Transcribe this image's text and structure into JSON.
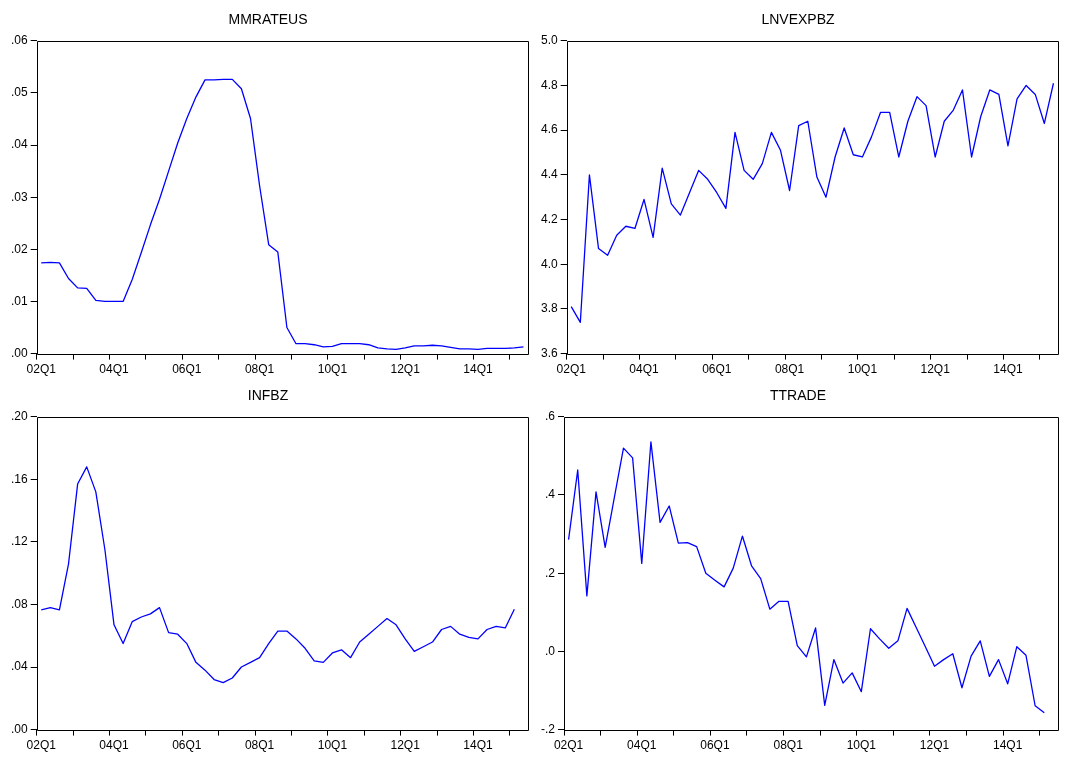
{
  "chart_data": [
    {
      "type": "line",
      "title": "MMRATEUS",
      "grid": false,
      "legend": false,
      "categories": [
        "02Q1",
        null,
        null,
        null,
        null,
        null,
        null,
        null,
        "04Q1",
        null,
        null,
        null,
        null,
        null,
        null,
        null,
        "06Q1",
        null,
        null,
        null,
        null,
        null,
        null,
        null,
        "08Q1",
        null,
        null,
        null,
        null,
        null,
        null,
        null,
        "10Q1",
        null,
        null,
        null,
        null,
        null,
        null,
        null,
        "12Q1",
        null,
        null,
        null,
        null,
        null,
        null,
        null,
        "14Q1",
        null,
        null,
        null,
        null,
        null
      ],
      "ylim": [
        0,
        0.06
      ],
      "yticks": [
        {
          "value": 0,
          "label": ".00"
        },
        {
          "value": 0.01,
          "label": ".01"
        },
        {
          "value": 0.02,
          "label": ".02"
        },
        {
          "value": 0.03,
          "label": ".03"
        },
        {
          "value": 0.04,
          "label": ".04"
        },
        {
          "value": 0.05,
          "label": ".05"
        },
        {
          "value": 0.06,
          "label": ".06"
        }
      ],
      "series": [
        {
          "color": "#0000ff",
          "values": [
            0.0174,
            0.0175,
            0.0174,
            0.0144,
            0.0126,
            0.0125,
            0.0102,
            0.01,
            0.01,
            0.01,
            0.0142,
            0.0194,
            0.0247,
            0.0296,
            0.035,
            0.0404,
            0.0451,
            0.0492,
            0.0525,
            0.0525,
            0.0526,
            0.0526,
            0.0508,
            0.0451,
            0.0322,
            0.0209,
            0.0195,
            0.005,
            0.0019,
            0.0019,
            0.0017,
            0.0013,
            0.0014,
            0.0019,
            0.0019,
            0.0019,
            0.0017,
            0.0011,
            0.0009,
            0.0008,
            0.0011,
            0.0015,
            0.0015,
            0.0016,
            0.0015,
            0.0012,
            0.0009,
            0.0009,
            0.0008,
            0.001,
            0.001,
            0.001,
            0.0011,
            0.0013
          ]
        }
      ]
    },
    {
      "type": "line",
      "title": "LNVEXPBZ",
      "grid": false,
      "legend": false,
      "categories": [
        "02Q1",
        null,
        null,
        null,
        null,
        null,
        null,
        null,
        "04Q1",
        null,
        null,
        null,
        null,
        null,
        null,
        null,
        "06Q1",
        null,
        null,
        null,
        null,
        null,
        null,
        null,
        "08Q1",
        null,
        null,
        null,
        null,
        null,
        null,
        null,
        "10Q1",
        null,
        null,
        null,
        null,
        null,
        null,
        null,
        "12Q1",
        null,
        null,
        null,
        null,
        null,
        null,
        null,
        "14Q1",
        null,
        null,
        null,
        null,
        null
      ],
      "ylim": [
        3.6,
        5.0
      ],
      "yticks": [
        {
          "value": 3.6,
          "label": "3.6"
        },
        {
          "value": 3.8,
          "label": "3.8"
        },
        {
          "value": 4,
          "label": "4.0"
        },
        {
          "value": 4.2,
          "label": "4.2"
        },
        {
          "value": 4.4,
          "label": "4.4"
        },
        {
          "value": 4.6,
          "label": "4.6"
        },
        {
          "value": 4.8,
          "label": "4.8"
        },
        {
          "value": 5,
          "label": "5.0"
        }
      ],
      "series": [
        {
          "color": "#0000ff",
          "values": [
            3.81,
            3.74,
            4.4,
            4.07,
            4.04,
            4.13,
            4.17,
            4.16,
            4.29,
            4.12,
            4.43,
            4.27,
            4.22,
            4.32,
            4.42,
            4.38,
            4.32,
            4.25,
            4.59,
            4.42,
            4.38,
            4.45,
            4.59,
            4.51,
            4.33,
            4.62,
            4.64,
            4.39,
            4.3,
            4.48,
            4.61,
            4.49,
            4.48,
            4.57,
            4.68,
            4.68,
            4.48,
            4.64,
            4.75,
            4.71,
            4.48,
            4.64,
            4.69,
            4.78,
            4.48,
            4.66,
            4.78,
            4.76,
            4.53,
            4.74,
            4.8,
            4.76,
            4.63,
            4.81
          ]
        }
      ]
    },
    {
      "type": "line",
      "title": "INFBZ",
      "grid": false,
      "legend": false,
      "categories": [
        "02Q1",
        null,
        null,
        null,
        null,
        null,
        null,
        null,
        "04Q1",
        null,
        null,
        null,
        null,
        null,
        null,
        null,
        "06Q1",
        null,
        null,
        null,
        null,
        null,
        null,
        null,
        "08Q1",
        null,
        null,
        null,
        null,
        null,
        null,
        null,
        "10Q1",
        null,
        null,
        null,
        null,
        null,
        null,
        null,
        "12Q1",
        null,
        null,
        null,
        null,
        null,
        null,
        null,
        "14Q1",
        null,
        null,
        null,
        null,
        null
      ],
      "ylim": [
        0,
        0.2
      ],
      "yticks": [
        {
          "value": 0,
          "label": ".00"
        },
        {
          "value": 0.04,
          "label": ".04"
        },
        {
          "value": 0.08,
          "label": ".08"
        },
        {
          "value": 0.12,
          "label": ".12"
        },
        {
          "value": 0.16,
          "label": ".16"
        },
        {
          "value": 0.2,
          "label": ".20"
        }
      ],
      "series": [
        {
          "color": "#0000ff",
          "values": [
            0.0765,
            0.078,
            0.0765,
            0.106,
            0.157,
            0.168,
            0.152,
            0.115,
            0.067,
            0.055,
            0.069,
            0.072,
            0.074,
            0.078,
            0.062,
            0.061,
            0.055,
            0.043,
            0.038,
            0.032,
            0.03,
            0.033,
            0.04,
            0.043,
            0.046,
            0.055,
            0.063,
            0.063,
            0.058,
            0.052,
            0.044,
            0.043,
            0.049,
            0.051,
            0.046,
            0.056,
            0.061,
            0.066,
            0.071,
            0.067,
            0.058,
            0.05,
            0.053,
            0.056,
            0.064,
            0.066,
            0.061,
            0.059,
            0.058,
            0.064,
            0.066,
            0.065,
            0.077,
            null
          ]
        }
      ]
    },
    {
      "type": "line",
      "title": "TTRADE",
      "grid": false,
      "legend": false,
      "categories": [
        "02Q1",
        null,
        null,
        null,
        null,
        null,
        null,
        null,
        "04Q1",
        null,
        null,
        null,
        null,
        null,
        null,
        null,
        "06Q1",
        null,
        null,
        null,
        null,
        null,
        null,
        null,
        "08Q1",
        null,
        null,
        null,
        null,
        null,
        null,
        null,
        "10Q1",
        null,
        null,
        null,
        null,
        null,
        null,
        null,
        "12Q1",
        null,
        null,
        null,
        null,
        null,
        null,
        null,
        "14Q1",
        null,
        null,
        null,
        null,
        null
      ],
      "ylim": [
        -0.2,
        0.6
      ],
      "yticks": [
        {
          "value": -0.2,
          "label": "-.2"
        },
        {
          "value": 0,
          "label": ".0"
        },
        {
          "value": 0.2,
          "label": ".2"
        },
        {
          "value": 0.4,
          "label": ".4"
        },
        {
          "value": 0.6,
          "label": ".6"
        }
      ],
      "series": [
        {
          "color": "#0000ff",
          "values": [
            0.286,
            0.464,
            0.142,
            0.408,
            0.266,
            0.393,
            0.52,
            0.495,
            0.225,
            0.536,
            0.33,
            0.372,
            0.277,
            0.278,
            0.268,
            0.2,
            0.182,
            0.165,
            0.213,
            0.295,
            0.219,
            0.186,
            0.108,
            0.128,
            0.128,
            0.015,
            -0.014,
            0.06,
            -0.138,
            -0.021,
            -0.081,
            -0.055,
            -0.103,
            0.058,
            0.032,
            0.008,
            0.027,
            0.11,
            0.061,
            0.012,
            -0.038,
            -0.021,
            -0.006,
            -0.093,
            -0.012,
            0.027,
            -0.064,
            -0.021,
            -0.083,
            0.012,
            -0.01,
            -0.139,
            -0.157,
            null
          ]
        }
      ]
    }
  ]
}
